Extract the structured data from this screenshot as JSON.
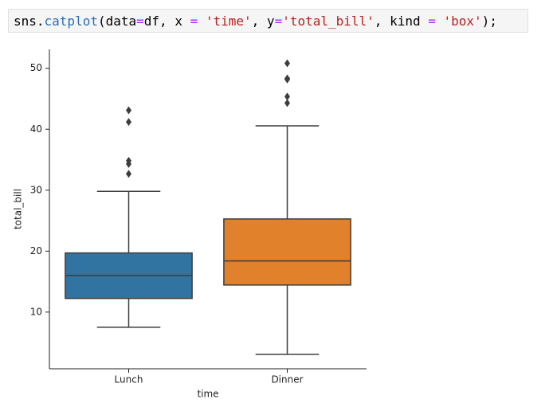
{
  "code": {
    "tokens": [
      "sns.",
      "catplot",
      "(data",
      "=",
      "df, x ",
      "=",
      " 'time'",
      ", y",
      "=",
      "'total_bill'",
      ", kind ",
      "=",
      " 'box'",
      ");"
    ],
    "colors": [
      "#000000",
      "#2a6fb8",
      "#000000",
      "#aa22ff",
      "#000000",
      "#aa22ff",
      "#ba2121",
      "#000000",
      "#aa22ff",
      "#ba2121",
      "#000000",
      "#aa22ff",
      "#ba2121",
      "#000000"
    ]
  },
  "chart_data": {
    "type": "box",
    "xlabel": "time",
    "ylabel": "total_bill",
    "categories": [
      "Lunch",
      "Dinner"
    ],
    "boxes": [
      {
        "color": "#3274a1",
        "min": 7.51,
        "q1": 12.24,
        "median": 16.0,
        "q3": 19.7,
        "max": 29.8,
        "outliers": [
          43.11,
          41.19,
          34.83,
          34.3,
          32.68
        ]
      },
      {
        "color": "#e1812c",
        "min": 3.07,
        "q1": 14.44,
        "median": 18.39,
        "q3": 25.28,
        "max": 40.55,
        "outliers": [
          50.81,
          48.33,
          48.27,
          48.17,
          45.35,
          44.3
        ]
      }
    ],
    "ylim": [
      0.7,
      53.1
    ],
    "yticks": [
      10,
      20,
      30,
      40,
      50
    ],
    "line_color": "#3d3d3d"
  }
}
